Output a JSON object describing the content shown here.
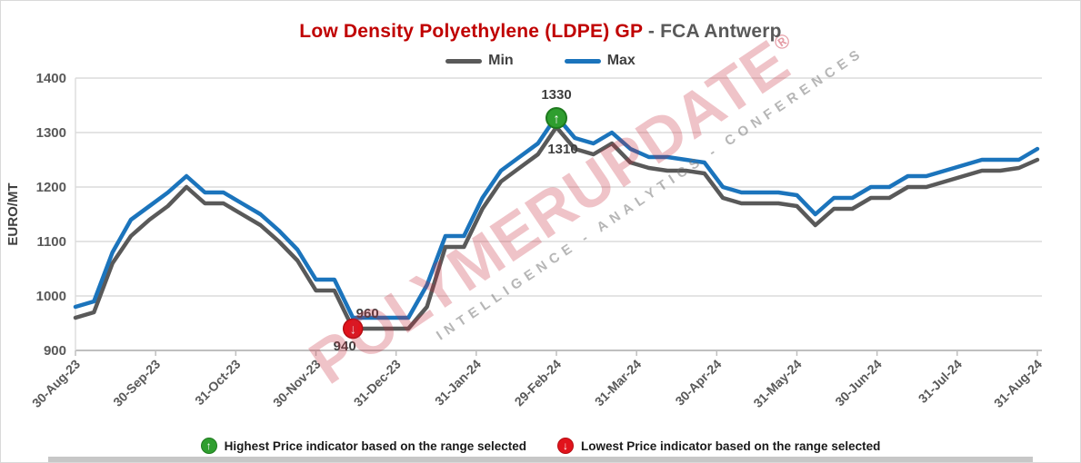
{
  "title": {
    "product": "Low Density Polyethylene (LDPE) GP",
    "separator": " - ",
    "location": "FCA Antwerp"
  },
  "legend": {
    "min": "Min",
    "max": "Max"
  },
  "footer": {
    "highest_text": "Highest Price indicator based on the range selected",
    "lowest_text": "Lowest Price indicator based on the range selected"
  },
  "watermark": {
    "brand": "POLYMERUPDATE",
    "registered": "®",
    "tagline": "INTELLIGENCE - ANALYTICS - CONFERENCES"
  },
  "icons": {
    "up_arrow": "↑",
    "down_arrow": "↓"
  },
  "colors": {
    "min_line": "#595959",
    "max_line": "#1b74bc",
    "title_red": "#c00000",
    "title_gray": "#595959",
    "gridline": "#dcdcdc",
    "axis": "#bfbfbf",
    "tick_text": "#595959",
    "annotation_text": "#404040",
    "highest_marker": "#2f9e2f",
    "highest_marker_ring": "#1e7a1e",
    "lowest_marker": "#e1131c",
    "lowest_marker_ring": "#b50d13"
  },
  "chart_data": {
    "type": "line",
    "title": "Low Density Polyethylene (LDPE) GP - FCA Antwerp",
    "ylabel": "EURO/MT",
    "xlabel": "",
    "ylim": [
      900,
      1400
    ],
    "y_ticks": [
      900,
      1000,
      1100,
      1200,
      1300,
      1400
    ],
    "grid": "horizontal",
    "legend_position": "top-center",
    "frequency": "weekly",
    "x_tick_labels": [
      "30-Aug-23",
      "30-Sep-23",
      "31-Oct-23",
      "30-Nov-23",
      "31-Dec-23",
      "31-Jan-24",
      "29-Feb-24",
      "31-Mar-24",
      "30-Apr-24",
      "31-May-24",
      "30-Jun-24",
      "31-Jul-24",
      "31-Aug-24"
    ],
    "series": [
      {
        "name": "Min",
        "color": "#595959",
        "values": [
          960,
          970,
          1060,
          1110,
          1140,
          1165,
          1200,
          1170,
          1170,
          1150,
          1130,
          1100,
          1065,
          1010,
          1010,
          940,
          940,
          940,
          940,
          980,
          1090,
          1090,
          1160,
          1210,
          1235,
          1260,
          1310,
          1270,
          1260,
          1280,
          1245,
          1235,
          1230,
          1230,
          1225,
          1180,
          1170,
          1170,
          1170,
          1165,
          1130,
          1160,
          1160,
          1180,
          1180,
          1200,
          1200,
          1210,
          1220,
          1230,
          1230,
          1235,
          1250
        ]
      },
      {
        "name": "Max",
        "color": "#1b74bc",
        "values": [
          980,
          990,
          1080,
          1140,
          1165,
          1190,
          1220,
          1190,
          1190,
          1170,
          1150,
          1120,
          1085,
          1030,
          1030,
          960,
          960,
          960,
          960,
          1020,
          1110,
          1110,
          1180,
          1230,
          1255,
          1280,
          1330,
          1290,
          1280,
          1300,
          1270,
          1255,
          1255,
          1250,
          1245,
          1200,
          1190,
          1190,
          1190,
          1185,
          1150,
          1180,
          1180,
          1200,
          1200,
          1220,
          1220,
          1230,
          1240,
          1250,
          1250,
          1250,
          1270
        ]
      }
    ],
    "annotations": [
      {
        "type": "highest",
        "series": "Max",
        "index": 26,
        "value": 1330,
        "label": "1330",
        "companion_label": "1310"
      },
      {
        "type": "lowest",
        "series": "Min",
        "index": 15,
        "value": 940,
        "label": "940",
        "companion_label": "960"
      }
    ]
  }
}
